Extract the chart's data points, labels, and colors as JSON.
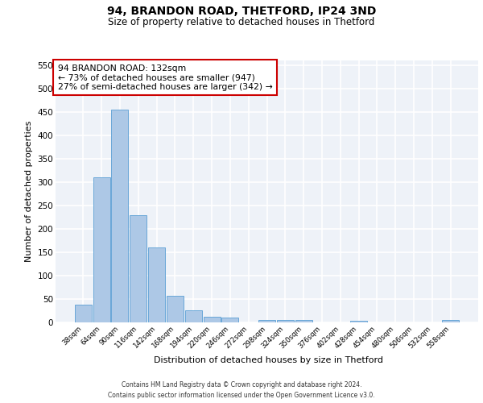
{
  "title1": "94, BRANDON ROAD, THETFORD, IP24 3ND",
  "title2": "Size of property relative to detached houses in Thetford",
  "xlabel": "Distribution of detached houses by size in Thetford",
  "ylabel": "Number of detached properties",
  "categories": [
    "38sqm",
    "64sqm",
    "90sqm",
    "116sqm",
    "142sqm",
    "168sqm",
    "194sqm",
    "220sqm",
    "246sqm",
    "272sqm",
    "298sqm",
    "324sqm",
    "350sqm",
    "376sqm",
    "402sqm",
    "428sqm",
    "454sqm",
    "480sqm",
    "506sqm",
    "532sqm",
    "558sqm"
  ],
  "values": [
    38,
    310,
    455,
    230,
    160,
    57,
    25,
    12,
    10,
    0,
    5,
    5,
    5,
    0,
    0,
    3,
    0,
    0,
    0,
    0,
    5
  ],
  "bar_color": "#adc8e6",
  "bar_edge_color": "#5a9fd4",
  "ylim": [
    0,
    560
  ],
  "yticks": [
    0,
    50,
    100,
    150,
    200,
    250,
    300,
    350,
    400,
    450,
    500,
    550
  ],
  "annotation_text": "94 BRANDON ROAD: 132sqm\n← 73% of detached houses are smaller (947)\n27% of semi-detached houses are larger (342) →",
  "annotation_box_color": "#ffffff",
  "annotation_box_edge": "#cc0000",
  "footer1": "Contains HM Land Registry data © Crown copyright and database right 2024.",
  "footer2": "Contains public sector information licensed under the Open Government Licence v3.0.",
  "bg_color": "#eef2f8",
  "grid_color": "#ffffff"
}
